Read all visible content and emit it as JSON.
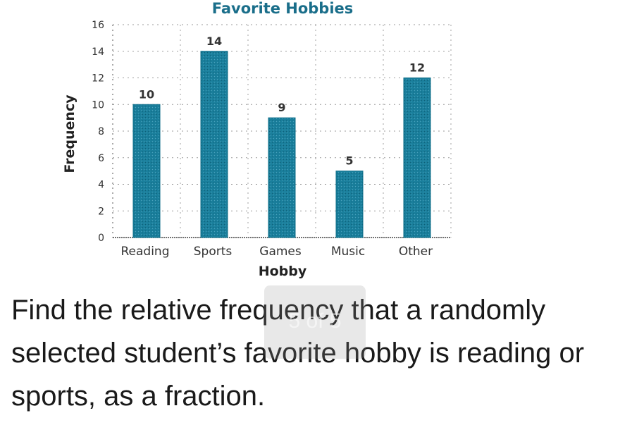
{
  "chart_data": {
    "type": "bar",
    "title": "Favorite Hobbies",
    "xlabel": "Hobby",
    "ylabel": "Frequency",
    "categories": [
      "Reading",
      "Sports",
      "Games",
      "Music",
      "Other"
    ],
    "values": [
      10,
      14,
      9,
      5,
      12
    ],
    "ylim": [
      0,
      16
    ],
    "yticks": [
      0,
      2,
      4,
      6,
      8,
      10,
      12,
      14,
      16
    ],
    "grid": true,
    "bar_color": "#1a7f9c",
    "data_labels": true
  },
  "question": {
    "text": "Find the relative frequency that a randomly selected student’s favorite hobby is reading or sports, as a fraction."
  },
  "page_indicator": {
    "text": "5 of 5"
  }
}
